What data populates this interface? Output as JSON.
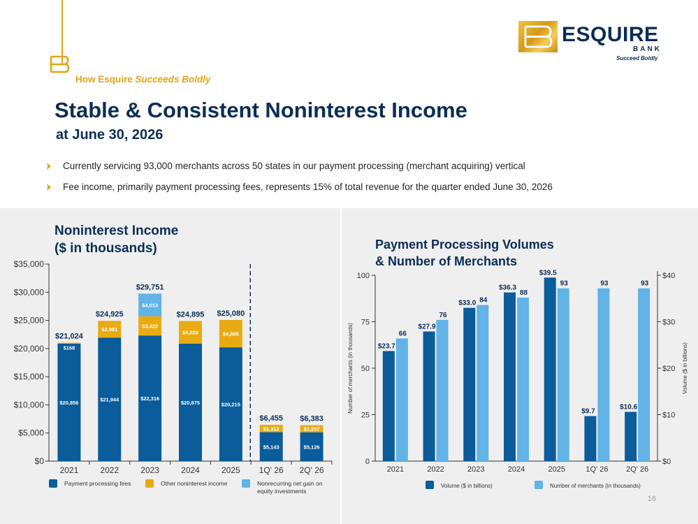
{
  "header": {
    "tagline_plain": "How Esquire ",
    "tagline_italic": "Succeeds Boldly",
    "title": "Stable & Consistent Noninterest Income",
    "subtitle": "at June 30, 2026"
  },
  "logo": {
    "word": "ESQUIRE",
    "bank": "BANK",
    "tagline": "Succeed Boldly",
    "accent": "#d9a21b"
  },
  "bullets": [
    "Currently servicing 93,000 merchants across 50 states in our payment processing (merchant acquiring) vertical",
    "Fee income, primarily payment processing fees, represents 15% of total revenue for the quarter ended June 30, 2026"
  ],
  "page_number": "16",
  "colors": {
    "navy": "#0a5c9a",
    "gold": "#e8ab12",
    "light_blue": "#62b3e6",
    "title_navy": "#0c2d55"
  },
  "chart_data": [
    {
      "type": "bar",
      "title": "Noninterest Income",
      "subtitle": "($ in thousands)",
      "stacked": true,
      "categories": [
        "2021",
        "2022",
        "2023",
        "2024",
        "2025",
        "1Q' 26",
        "2Q' 26"
      ],
      "ylim": [
        0,
        35000
      ],
      "yticks": [
        0,
        5000,
        10000,
        15000,
        20000,
        25000,
        30000,
        35000
      ],
      "ytick_labels": [
        "$0",
        "$5,000",
        "$10,000",
        "$15,000",
        "$20,000",
        "$25,000",
        "$30,000",
        "$35,000"
      ],
      "series": [
        {
          "name": "Payment processing fees",
          "color": "#0a5c9a",
          "values": [
            20856,
            21944,
            22316,
            20875,
            20215,
            5143,
            5126
          ],
          "labels": [
            "$20,856",
            "$21,944",
            "$22,316",
            "$20,875",
            "$20,215",
            "$5,143",
            "$5,126"
          ]
        },
        {
          "name": "Other noninterest income",
          "color": "#e8ab12",
          "values": [
            168,
            2981,
            3422,
            4020,
            4865,
            1312,
            1257
          ],
          "labels": [
            "$168",
            "$2,981",
            "$3,422",
            "$4,020",
            "$4,865",
            "$1,312",
            "$1,257"
          ]
        },
        {
          "name": "Nonrecurring net gain on equity investments",
          "color": "#62b3e6",
          "values": [
            0,
            0,
            4013,
            0,
            0,
            0,
            0
          ],
          "labels": [
            "",
            "",
            "$4,013",
            "",
            "",
            "",
            ""
          ]
        }
      ],
      "totals": [
        "$21,024",
        "$24,925",
        "$29,751",
        "$24,895",
        "$25,080",
        "$6,455",
        "$6,383"
      ],
      "legend": "bottom",
      "annotations": [
        "dashed divider between 2025 and 1Q' 26"
      ]
    },
    {
      "type": "bar",
      "title": "Payment Processing Volumes",
      "subtitle": "& Number of Merchants",
      "categories": [
        "2021",
        "2022",
        "2023",
        "2024",
        "2025",
        "1Q' 26",
        "2Q' 26"
      ],
      "ylabel": "Number of merchants (in thousands)",
      "ylabel_right": "Volume ($ in billions)",
      "ylim": [
        0,
        100
      ],
      "yticks": [
        0,
        25,
        50,
        75,
        100
      ],
      "ylim_right": [
        0,
        40
      ],
      "yticks_right": [
        0,
        10,
        20,
        30,
        40
      ],
      "ytick_labels_right": [
        "$0",
        "$10",
        "$20",
        "$30",
        "$40"
      ],
      "series": [
        {
          "name": "Volume ($ in billions)",
          "axis": "right",
          "color": "#0a5c9a",
          "values": [
            23.7,
            27.9,
            33.0,
            36.3,
            39.5,
            9.7,
            10.6
          ],
          "labels": [
            "$23.7",
            "$27.9",
            "$33.0",
            "$36.3",
            "$39.5",
            "$9.7",
            "$10.6"
          ]
        },
        {
          "name": "Number of merchants (in thousands)",
          "axis": "left",
          "color": "#62b3e6",
          "values": [
            66,
            76,
            84,
            88,
            93,
            93,
            93
          ],
          "labels": [
            "66",
            "76",
            "84",
            "88",
            "93",
            "93",
            "93"
          ]
        }
      ],
      "legend": "bottom"
    }
  ]
}
